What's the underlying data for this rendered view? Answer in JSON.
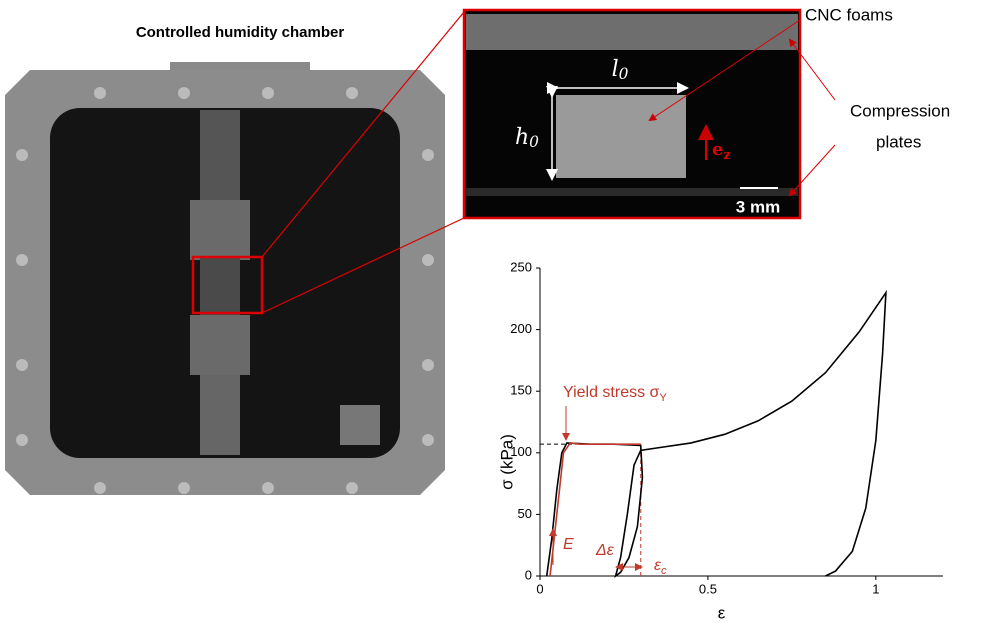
{
  "labels": {
    "chamber_title": "Controlled humidity chamber",
    "cnc_foams": "CNC foams",
    "compression_plates": [
      "Compression",
      "plates"
    ],
    "scale_bar": "3 mm",
    "length": {
      "main": "l",
      "sub": "0"
    },
    "height": {
      "main": "h",
      "sub": "0"
    },
    "direction": {
      "main": "e",
      "sub": "z"
    }
  },
  "chart_data": {
    "type": "line",
    "xlabel": "ε",
    "ylabel": "σ (kPa)",
    "xlim": [
      0,
      1.2
    ],
    "ylim": [
      0,
      250
    ],
    "xticks": [
      0,
      0.5,
      1
    ],
    "yticks": [
      0,
      50,
      100,
      150,
      200,
      250
    ],
    "grid": false,
    "series": [
      {
        "color": "#000000",
        "x": [
          0.02,
          0.035,
          0.05,
          0.065,
          0.08,
          0.15,
          0.22,
          0.3,
          0.305,
          0.29,
          0.265,
          0.24,
          0.225,
          0.24,
          0.26,
          0.28,
          0.3,
          0.35,
          0.45,
          0.55,
          0.65,
          0.75,
          0.85,
          0.95,
          1.03,
          1.02,
          1.0,
          0.97,
          0.93,
          0.88,
          0.85
        ],
        "values": [
          0,
          30,
          70,
          100,
          108,
          107,
          107,
          106,
          80,
          40,
          15,
          3,
          0,
          15,
          50,
          90,
          102,
          104,
          108,
          115,
          126,
          142,
          165,
          198,
          230,
          180,
          110,
          55,
          20,
          4,
          0
        ]
      },
      {
        "color": "#c0392b",
        "x": [
          0.03,
          0.05,
          0.07,
          0.09,
          0.12,
          0.2,
          0.3
        ],
        "values": [
          0,
          50,
          100,
          108,
          107,
          107,
          107
        ]
      }
    ],
    "reference_lines": [
      {
        "y": 107,
        "x_end": 0.3,
        "color": "#000000"
      },
      {
        "x": 0.3,
        "y_end": 107,
        "color": "#c0392b"
      }
    ],
    "annotations": [
      {
        "main": "Yield stress σ",
        "sub": "Y"
      },
      {
        "main": "E"
      },
      {
        "main": "Δε"
      },
      {
        "main": "ε",
        "sub": "c"
      }
    ]
  }
}
